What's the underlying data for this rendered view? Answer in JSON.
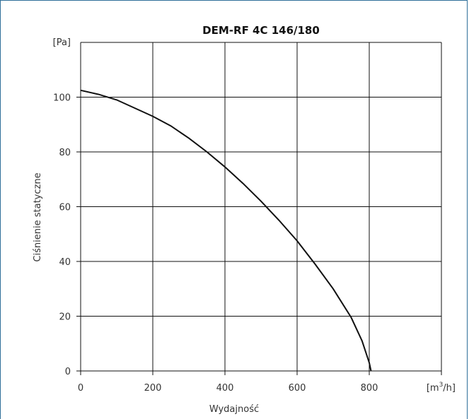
{
  "chart_data": {
    "type": "line",
    "title": "DEM-RF 4C 146/180",
    "xlabel": "Wydajność",
    "ylabel": "Ciśnienie statyczne",
    "x_unit": "[m³/h]",
    "y_unit": "[Pa]",
    "xlim": [
      0,
      1000
    ],
    "ylim": [
      0,
      120
    ],
    "x_ticks": [
      0,
      200,
      400,
      600,
      800
    ],
    "x_tick_labels": [
      "0",
      "200",
      "400",
      "600",
      "800"
    ],
    "y_ticks": [
      0,
      20,
      40,
      60,
      80,
      100
    ],
    "y_tick_labels": [
      "0",
      "20",
      "40",
      "60",
      "80",
      "100"
    ],
    "grid": true,
    "series": [
      {
        "x": [
          0,
          50,
          100,
          150,
          200,
          250,
          300,
          350,
          400,
          450,
          500,
          550,
          600,
          650,
          700,
          750,
          780,
          800,
          805
        ],
        "y": [
          102.5,
          101,
          99,
          96,
          93,
          89.5,
          85,
          80,
          74.5,
          68.5,
          62,
          55,
          47.5,
          39,
          30,
          19.5,
          11,
          3,
          0
        ]
      }
    ]
  }
}
